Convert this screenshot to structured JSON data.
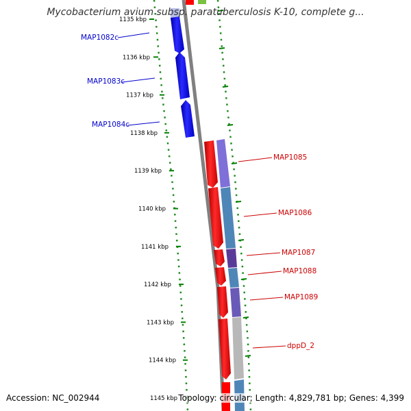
{
  "title": "Mycobacterium avium subsp. paratuberculosis K-10, complete g...",
  "accession_text": "Accession: NC_002944",
  "summary_text": "Topology: circular; Length: 4,829,781 bp; Genes: 4,399",
  "colors": {
    "forward_gene": "#ff0000",
    "reverse_gene": "#0000ff",
    "backbone": "#808080",
    "ruler_dots": "#228b22",
    "ruler_ticks": "#008000",
    "label_forward": "#cc0000",
    "label_reverse": "#0000cc",
    "cog_purple": "#7f6fd8",
    "cog_steelblue": "#4f86b8",
    "cog_darkpurple": "#5a3a98",
    "cog_grey": "#b8b8b8"
  },
  "ruler": {
    "unit": "kbp",
    "tick_labels": [
      "1135 kbp",
      "1136 kbp",
      "1137 kbp",
      "1138 kbp",
      "1139 kbp",
      "1140 kbp",
      "1141 kbp",
      "1142 kbp",
      "1143 kbp",
      "1144 kbp",
      "1145 kbp"
    ]
  },
  "genes": [
    {
      "label": "MAP1082c",
      "strand": "reverse"
    },
    {
      "label": "MAP1083c",
      "strand": "reverse"
    },
    {
      "label": "MAP1084c",
      "strand": "reverse"
    },
    {
      "label": "MAP1085",
      "strand": "forward"
    },
    {
      "label": "MAP1086",
      "strand": "forward"
    },
    {
      "label": "MAP1087",
      "strand": "forward"
    },
    {
      "label": "MAP1088",
      "strand": "forward"
    },
    {
      "label": "MAP1089",
      "strand": "forward"
    },
    {
      "label": "dppD_2",
      "strand": "forward"
    }
  ]
}
